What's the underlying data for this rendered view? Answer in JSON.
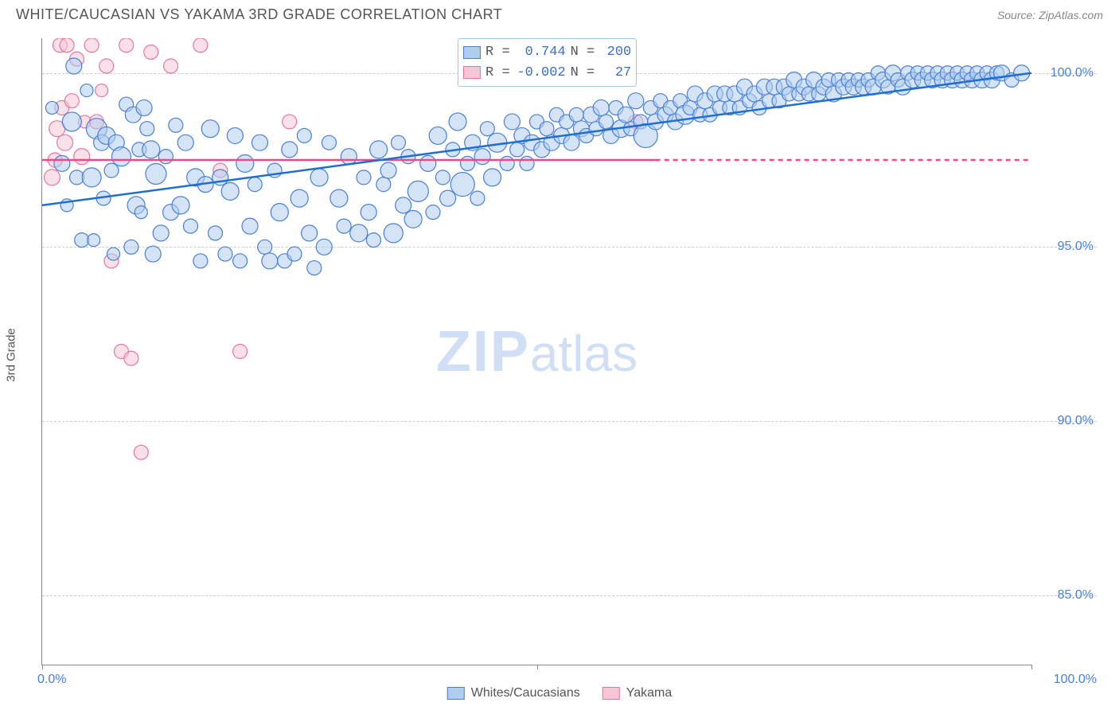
{
  "header": {
    "title": "WHITE/CAUCASIAN VS YAKAMA 3RD GRADE CORRELATION CHART",
    "source": "Source: ZipAtlas.com"
  },
  "axes": {
    "ylabel": "3rd Grade",
    "ylim": [
      83,
      101
    ],
    "yticks": [
      85.0,
      90.0,
      95.0,
      100.0
    ],
    "ytick_labels": [
      "85.0%",
      "90.0%",
      "95.0%",
      "100.0%"
    ],
    "xlim": [
      0,
      100
    ],
    "xtick_labels": {
      "left": "0.0%",
      "right": "100.0%"
    },
    "xtick_marks": [
      0,
      50,
      100
    ]
  },
  "colors": {
    "blue_fill": "#b0cdef",
    "blue_stroke": "#4a7fd6",
    "pink_fill": "#f7c6d5",
    "pink_stroke": "#e576a4",
    "blue_line": "#1f6fd0",
    "pink_line": "#e94b8a",
    "grid": "#cccccc",
    "axis": "#888888",
    "text_axis": "#4a7fd6",
    "watermark": "#d0dff5"
  },
  "stats": {
    "blue": {
      "r_label": "R =",
      "r": "0.744",
      "n_label": "N =",
      "n": "200"
    },
    "pink": {
      "r_label": "R =",
      "r": "-0.002",
      "n_label": "N =",
      "n": "27"
    }
  },
  "legend": {
    "blue": "Whites/Caucasians",
    "pink": "Yakama"
  },
  "lines": {
    "blue": {
      "x1": 0,
      "y1": 96.2,
      "x2": 100,
      "y2": 100.0,
      "dash_from_x": null
    },
    "pink": {
      "x1": 0,
      "y1": 97.5,
      "x2": 100,
      "y2": 97.5,
      "dash_from_x": 62
    }
  },
  "series": {
    "blue": {
      "points": [
        [
          1,
          99.0,
          8
        ],
        [
          2,
          97.4,
          10
        ],
        [
          2.5,
          96.2,
          8
        ],
        [
          3,
          98.6,
          12
        ],
        [
          3.2,
          100.2,
          10
        ],
        [
          3.5,
          97.0,
          9
        ],
        [
          4,
          95.2,
          9
        ],
        [
          4.5,
          99.5,
          8
        ],
        [
          5,
          97.0,
          12
        ],
        [
          5.2,
          95.2,
          8
        ],
        [
          5.5,
          98.4,
          13
        ],
        [
          6,
          98.0,
          10
        ],
        [
          6.2,
          96.4,
          9
        ],
        [
          6.5,
          98.2,
          11
        ],
        [
          7,
          97.2,
          9
        ],
        [
          7.2,
          94.8,
          8
        ],
        [
          7.5,
          98.0,
          10
        ],
        [
          8,
          97.6,
          12
        ],
        [
          8.5,
          99.1,
          9
        ],
        [
          9,
          95.0,
          9
        ],
        [
          9.2,
          98.8,
          10
        ],
        [
          9.5,
          96.2,
          11
        ],
        [
          9.8,
          97.8,
          9
        ],
        [
          10,
          96.0,
          8
        ],
        [
          10.3,
          99.0,
          10
        ],
        [
          10.6,
          98.4,
          9
        ],
        [
          11,
          97.8,
          11
        ],
        [
          11.2,
          94.8,
          10
        ],
        [
          11.5,
          97.1,
          13
        ],
        [
          12,
          95.4,
          10
        ],
        [
          12.5,
          97.6,
          9
        ],
        [
          13,
          96.0,
          10
        ],
        [
          13.5,
          98.5,
          9
        ],
        [
          14,
          96.2,
          11
        ],
        [
          14.5,
          98.0,
          10
        ],
        [
          15,
          95.6,
          9
        ],
        [
          15.5,
          97.0,
          11
        ],
        [
          16,
          94.6,
          9
        ],
        [
          16.5,
          96.8,
          10
        ],
        [
          17,
          98.4,
          11
        ],
        [
          17.5,
          95.4,
          9
        ],
        [
          18,
          97.0,
          10
        ],
        [
          18.5,
          94.8,
          9
        ],
        [
          19,
          96.6,
          11
        ],
        [
          19.5,
          98.2,
          10
        ],
        [
          20,
          94.6,
          9
        ],
        [
          20.5,
          97.4,
          11
        ],
        [
          21,
          95.6,
          10
        ],
        [
          21.5,
          96.8,
          9
        ],
        [
          22,
          98.0,
          10
        ],
        [
          22.5,
          95.0,
          9
        ],
        [
          23,
          94.6,
          10
        ],
        [
          23.5,
          97.2,
          9
        ],
        [
          24,
          96.0,
          11
        ],
        [
          24.5,
          94.6,
          9
        ],
        [
          25,
          97.8,
          10
        ],
        [
          25.5,
          94.8,
          9
        ],
        [
          26,
          96.4,
          11
        ],
        [
          26.5,
          98.2,
          9
        ],
        [
          27,
          95.4,
          10
        ],
        [
          27.5,
          94.4,
          9
        ],
        [
          28,
          97.0,
          11
        ],
        [
          28.5,
          95.0,
          10
        ],
        [
          29,
          98.0,
          9
        ],
        [
          30,
          96.4,
          11
        ],
        [
          30.5,
          95.6,
          9
        ],
        [
          31,
          97.6,
          10
        ],
        [
          32,
          95.4,
          11
        ],
        [
          32.5,
          97.0,
          9
        ],
        [
          33,
          96.0,
          10
        ],
        [
          33.5,
          95.2,
          9
        ],
        [
          34,
          97.8,
          11
        ],
        [
          34.5,
          96.8,
          9
        ],
        [
          35,
          97.2,
          10
        ],
        [
          35.5,
          95.4,
          12
        ],
        [
          36,
          98.0,
          9
        ],
        [
          36.5,
          96.2,
          10
        ],
        [
          37,
          97.6,
          9
        ],
        [
          37.5,
          95.8,
          11
        ],
        [
          38,
          96.6,
          13
        ],
        [
          39,
          97.4,
          10
        ],
        [
          39.5,
          96.0,
          9
        ],
        [
          40,
          98.2,
          11
        ],
        [
          40.5,
          97.0,
          9
        ],
        [
          41,
          96.4,
          10
        ],
        [
          41.5,
          97.8,
          9
        ],
        [
          42,
          98.6,
          11
        ],
        [
          42.5,
          96.8,
          15
        ],
        [
          43,
          97.4,
          9
        ],
        [
          43.5,
          98.0,
          10
        ],
        [
          44,
          96.4,
          9
        ],
        [
          44.5,
          97.6,
          10
        ],
        [
          45,
          98.4,
          9
        ],
        [
          45.5,
          97.0,
          11
        ],
        [
          46,
          98.0,
          12
        ],
        [
          47,
          97.4,
          9
        ],
        [
          47.5,
          98.6,
          10
        ],
        [
          48,
          97.8,
          9
        ],
        [
          48.5,
          98.2,
          10
        ],
        [
          49,
          97.4,
          9
        ],
        [
          49.5,
          98.0,
          10
        ],
        [
          50,
          98.6,
          9
        ],
        [
          50.5,
          97.8,
          10
        ],
        [
          51,
          98.4,
          9
        ],
        [
          51.5,
          98.0,
          10
        ],
        [
          52,
          98.8,
          9
        ],
        [
          52.5,
          98.2,
          10
        ],
        [
          53,
          98.6,
          9
        ],
        [
          53.5,
          98.0,
          10
        ],
        [
          54,
          98.8,
          9
        ],
        [
          54.5,
          98.4,
          10
        ],
        [
          55,
          98.2,
          9
        ],
        [
          55.5,
          98.8,
          10
        ],
        [
          56,
          98.4,
          9
        ],
        [
          56.5,
          99.0,
          10
        ],
        [
          57,
          98.6,
          9
        ],
        [
          57.5,
          98.2,
          10
        ],
        [
          58,
          99.0,
          9
        ],
        [
          58.5,
          98.4,
          11
        ],
        [
          59,
          98.8,
          10
        ],
        [
          59.5,
          98.4,
          9
        ],
        [
          60,
          99.2,
          10
        ],
        [
          60.5,
          98.6,
          9
        ],
        [
          61,
          98.2,
          15
        ],
        [
          61.5,
          99.0,
          9
        ],
        [
          62,
          98.6,
          10
        ],
        [
          62.5,
          99.2,
          9
        ],
        [
          63,
          98.8,
          10
        ],
        [
          63.5,
          99.0,
          9
        ],
        [
          64,
          98.6,
          10
        ],
        [
          64.5,
          99.2,
          9
        ],
        [
          65,
          98.8,
          12
        ],
        [
          65.5,
          99.0,
          9
        ],
        [
          66,
          99.4,
          10
        ],
        [
          66.5,
          98.8,
          9
        ],
        [
          67,
          99.2,
          10
        ],
        [
          67.5,
          98.8,
          9
        ],
        [
          68,
          99.4,
          10
        ],
        [
          68.5,
          99.0,
          9
        ],
        [
          69,
          99.4,
          10
        ],
        [
          69.5,
          99.0,
          9
        ],
        [
          70,
          99.4,
          10
        ],
        [
          70.5,
          99.0,
          9
        ],
        [
          71,
          99.6,
          10
        ],
        [
          71.5,
          99.2,
          9
        ],
        [
          72,
          99.4,
          10
        ],
        [
          72.5,
          99.0,
          9
        ],
        [
          73,
          99.6,
          10
        ],
        [
          73.5,
          99.2,
          9
        ],
        [
          74,
          99.6,
          10
        ],
        [
          74.5,
          99.2,
          9
        ],
        [
          75,
          99.6,
          10
        ],
        [
          75.5,
          99.4,
          9
        ],
        [
          76,
          99.8,
          10
        ],
        [
          76.5,
          99.4,
          9
        ],
        [
          77,
          99.6,
          10
        ],
        [
          77.5,
          99.4,
          9
        ],
        [
          78,
          99.8,
          10
        ],
        [
          78.5,
          99.4,
          9
        ],
        [
          79,
          99.6,
          10
        ],
        [
          79.5,
          99.8,
          9
        ],
        [
          80,
          99.4,
          10
        ],
        [
          80.5,
          99.8,
          9
        ],
        [
          81,
          99.6,
          10
        ],
        [
          81.5,
          99.8,
          9
        ],
        [
          82,
          99.6,
          10
        ],
        [
          82.5,
          99.8,
          9
        ],
        [
          83,
          99.6,
          10
        ],
        [
          83.5,
          99.8,
          9
        ],
        [
          84,
          99.6,
          10
        ],
        [
          84.5,
          100.0,
          9
        ],
        [
          85,
          99.8,
          10
        ],
        [
          85.5,
          99.6,
          9
        ],
        [
          86,
          100.0,
          10
        ],
        [
          86.5,
          99.8,
          9
        ],
        [
          87,
          99.6,
          10
        ],
        [
          87.5,
          100.0,
          9
        ],
        [
          88,
          99.8,
          10
        ],
        [
          88.5,
          100.0,
          9
        ],
        [
          89,
          99.8,
          10
        ],
        [
          89.5,
          100.0,
          9
        ],
        [
          90,
          99.8,
          10
        ],
        [
          90.5,
          100.0,
          9
        ],
        [
          91,
          99.8,
          10
        ],
        [
          91.5,
          100.0,
          9
        ],
        [
          92,
          99.8,
          10
        ],
        [
          92.5,
          100.0,
          9
        ],
        [
          93,
          99.8,
          10
        ],
        [
          93.5,
          100.0,
          9
        ],
        [
          94,
          99.8,
          10
        ],
        [
          94.5,
          100.0,
          9
        ],
        [
          95,
          99.8,
          10
        ],
        [
          95.5,
          100.0,
          9
        ],
        [
          96,
          99.8,
          10
        ],
        [
          96.5,
          100.0,
          9
        ],
        [
          97,
          100.0,
          10
        ],
        [
          98,
          99.8,
          9
        ],
        [
          99,
          100.0,
          10
        ]
      ]
    },
    "pink": {
      "points": [
        [
          1,
          97.0,
          10
        ],
        [
          1.3,
          97.5,
          9
        ],
        [
          1.5,
          98.4,
          10
        ],
        [
          1.8,
          100.8,
          9
        ],
        [
          2,
          99.0,
          9
        ],
        [
          2.3,
          98.0,
          10
        ],
        [
          2.5,
          100.8,
          9
        ],
        [
          3,
          99.2,
          9
        ],
        [
          3.5,
          100.4,
          9
        ],
        [
          4,
          97.6,
          10
        ],
        [
          4.3,
          98.6,
          8
        ],
        [
          5,
          100.8,
          9
        ],
        [
          5.5,
          98.6,
          9
        ],
        [
          6,
          99.5,
          8
        ],
        [
          6.5,
          100.2,
          9
        ],
        [
          7,
          94.6,
          9
        ],
        [
          8,
          92.0,
          9
        ],
        [
          8.5,
          100.8,
          9
        ],
        [
          9,
          91.8,
          9
        ],
        [
          10,
          89.1,
          9
        ],
        [
          11,
          100.6,
          9
        ],
        [
          13,
          100.2,
          9
        ],
        [
          16,
          100.8,
          9
        ],
        [
          18,
          97.2,
          9
        ],
        [
          20,
          92.0,
          9
        ],
        [
          25,
          98.6,
          9
        ],
        [
          60,
          98.6,
          9
        ]
      ]
    }
  },
  "watermark": {
    "zip": "ZIP",
    "atlas": "atlas"
  }
}
